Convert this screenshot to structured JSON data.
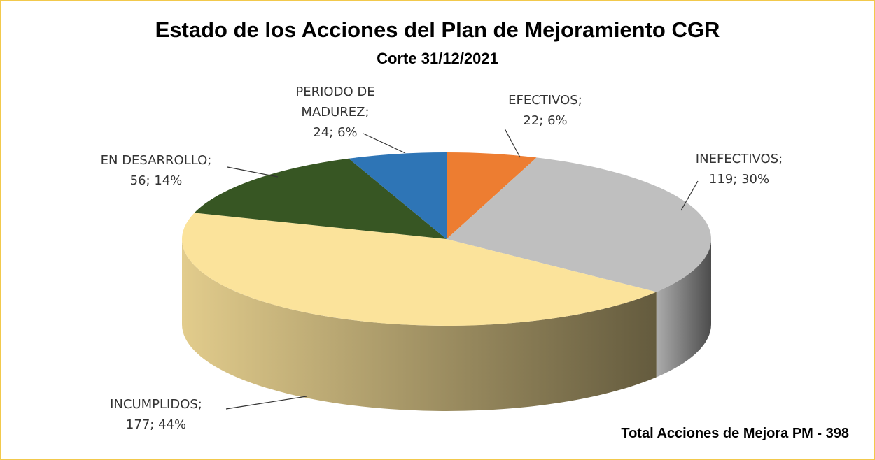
{
  "chart_data": {
    "type": "pie",
    "title": "Estado de los Acciones del Plan de Mejoramiento CGR",
    "subtitle": "Corte 31/12/2021",
    "categories": [
      "EFECTIVOS;",
      "INEFECTIVOS;",
      "INCUMPLIDOS;",
      "EN DESARROLLO;",
      "PERIODO DE MADUREZ;"
    ],
    "values": [
      22,
      119,
      177,
      56,
      24
    ],
    "value_labels": [
      "22; 6%",
      "119; 30%",
      "177; 44%",
      "56; 14%",
      "24; 6%"
    ],
    "colors": [
      "#ed7d31",
      "#bfbfbf",
      "#fbe39b",
      "#375623",
      "#2e75b6"
    ],
    "annotation": "Total Acciones de Mejora PM - 398"
  }
}
